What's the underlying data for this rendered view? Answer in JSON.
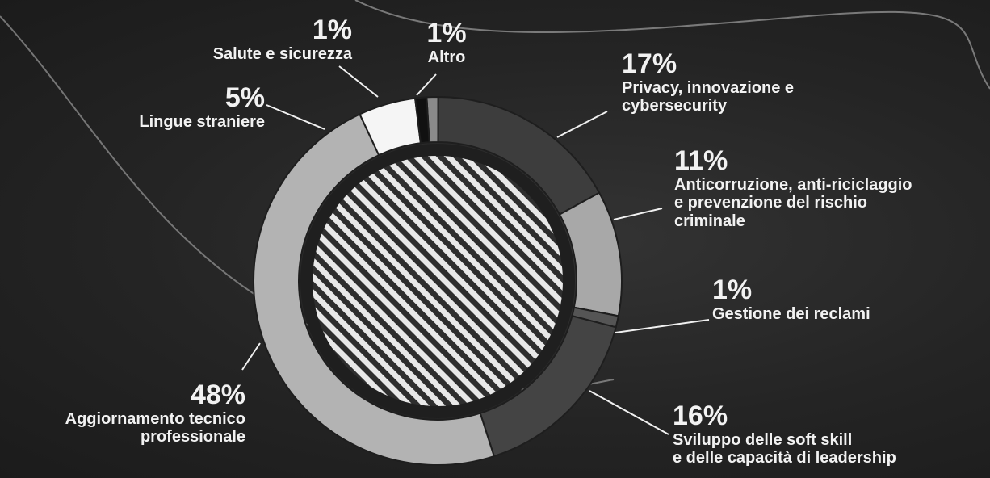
{
  "chart_data": {
    "type": "pie",
    "style": "donut with hatched center",
    "title": "",
    "slices": [
      {
        "label": "Altro",
        "value": 1,
        "value_label": "1%",
        "color": "#8a8a8a"
      },
      {
        "label": "Privacy, innovazione e cybersecurity",
        "value": 17,
        "value_label": "17%",
        "color": "#3d3d3d"
      },
      {
        "label": "Anticorruzione, anti-riciclaggio e prevenzione del rischio criminale",
        "value": 11,
        "value_label": "11%",
        "color": "#a8a8a8"
      },
      {
        "label": "Gestione dei reclami",
        "value": 1,
        "value_label": "1%",
        "color": "#555555"
      },
      {
        "label": "Sviluppo delle soft skill e delle capacità di leadership",
        "value": 16,
        "value_label": "16%",
        "color": "#444444"
      },
      {
        "label": "Aggiornamento tecnico professionale",
        "value": 48,
        "value_label": "48%",
        "color": "#b3b3b3"
      },
      {
        "label": "Lingue straniere",
        "value": 5,
        "value_label": "5%",
        "color": "#f5f5f5"
      },
      {
        "label": "Salute e sicurezza",
        "value": 1,
        "value_label": "1%",
        "color": "#111111"
      }
    ]
  },
  "labels": {
    "salute": {
      "pct": "1%",
      "line1": "Salute e sicurezza"
    },
    "altro": {
      "pct": "1%",
      "line1": "Altro"
    },
    "privacy": {
      "pct": "17%",
      "line1": "Privacy, innovazione e",
      "line2": "cybersecurity"
    },
    "anticorruzione": {
      "pct": "11%",
      "line1": "Anticorruzione, anti-riciclaggio",
      "line2": "e  prevenzione del  rischio",
      "line3": "criminale"
    },
    "reclami": {
      "pct": "1%",
      "line1": "Gestione dei reclami"
    },
    "softskill": {
      "pct": "16%",
      "line1": "Sviluppo delle soft skill",
      "line2": "e delle capacità di leadership"
    },
    "aggiornamento": {
      "pct": "48%",
      "line1": "Aggiornamento tecnico",
      "line2": "professionale"
    },
    "lingue": {
      "pct": "5%",
      "line1": "Lingue straniere"
    }
  }
}
